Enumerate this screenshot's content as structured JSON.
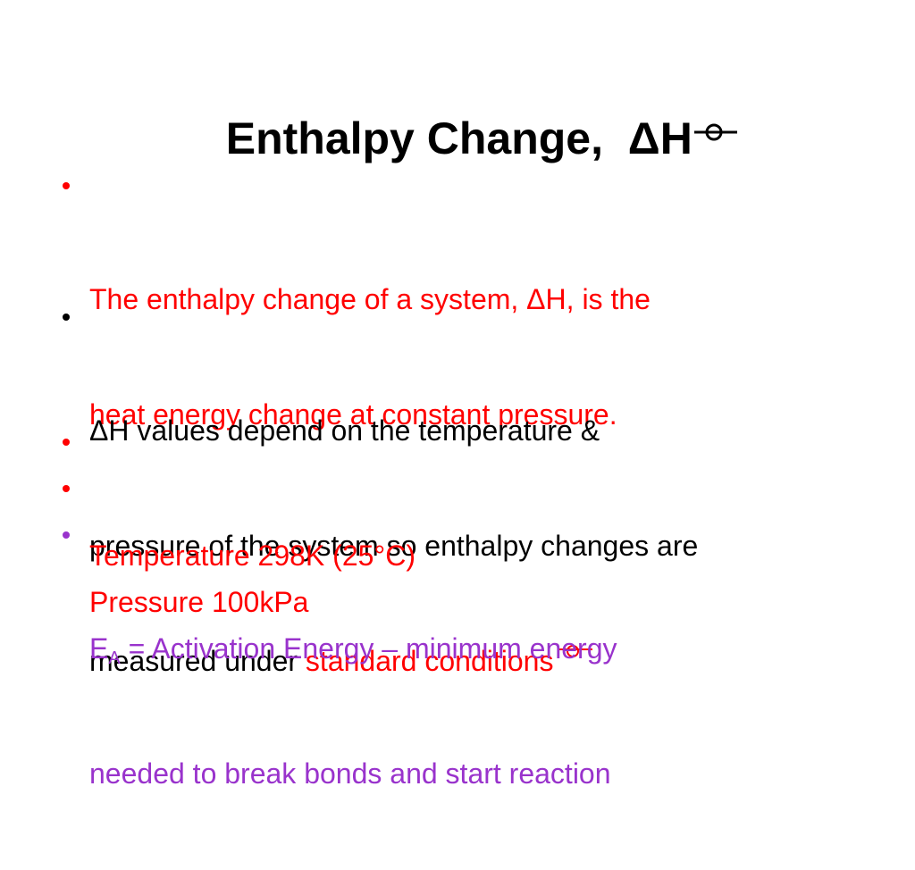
{
  "title": "Enthalpy Change,  ΔH",
  "bullets": [
    {
      "lines": [
        "The enthalpy change of a system, ΔH, is the",
        "heat energy change at constant pressure."
      ]
    },
    {
      "lines": [
        "ΔH values depend on the temperature &",
        "pressure of the system so enthalpy changes are",
        "measured under "
      ],
      "highlight": "standard conditions"
    },
    {
      "text": "Temperature 298K (25°C)"
    },
    {
      "text": "Pressure 100kPa"
    },
    {
      "symbol": "E",
      "subscript": "A",
      "lines": [
        " = Activation Energy – minimum energy",
        "needed to break bonds and start reaction"
      ]
    }
  ]
}
